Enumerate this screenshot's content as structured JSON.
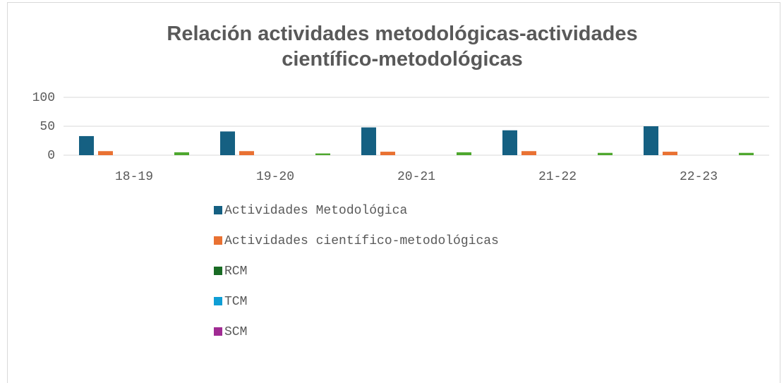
{
  "chart_data": {
    "type": "bar",
    "title": "Relación actividades metodológicas-actividades científico-metodológicas",
    "categories": [
      "18-19",
      "19-20",
      "20-21",
      "21-22",
      "22-23"
    ],
    "series": [
      {
        "name": "Actividades Metodológica",
        "color": "#156082",
        "values": [
          33,
          41,
          48,
          43,
          50
        ]
      },
      {
        "name": "Actividades científico-metodológicas",
        "color": "#e97132",
        "values": [
          7,
          7,
          6,
          7,
          6
        ]
      },
      {
        "name": "RCM",
        "color": "#196b24",
        "values": [
          0,
          0,
          0,
          0,
          0
        ]
      },
      {
        "name": "TCM",
        "color": "#0f9ed5",
        "values": [
          0,
          0,
          0,
          0,
          0
        ]
      },
      {
        "name": "SCM",
        "color": "#a02b93",
        "values": [
          0,
          0,
          0,
          0,
          0
        ]
      },
      {
        "name": null,
        "color": "#4ea72e",
        "values": [
          5,
          3,
          5,
          4,
          4
        ]
      }
    ],
    "ylim": [
      0,
      100
    ],
    "yticks": [
      0,
      50,
      100
    ],
    "grid": true,
    "legend": "bottom"
  }
}
